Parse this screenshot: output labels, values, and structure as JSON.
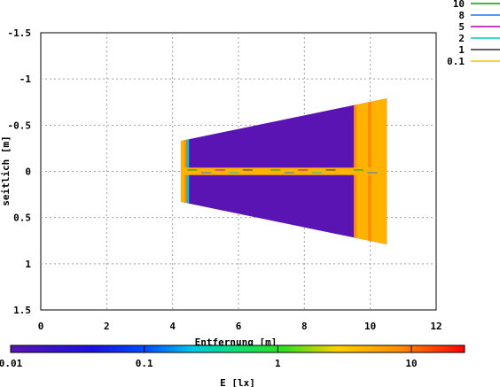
{
  "chart_data": {
    "type": "heatmap",
    "xlabel": "Entfernung [m]",
    "ylabel": "seitlich [m]",
    "xlim": [
      0,
      12
    ],
    "ylim": [
      -1.5,
      1.5
    ],
    "y_inverted": true,
    "grid": true,
    "x_ticks": [
      "0",
      "2",
      "4",
      "6",
      "8",
      "10",
      "12"
    ],
    "y_ticks": [
      "-1.5",
      "-1",
      "-0.5",
      "0",
      "0.5",
      "1",
      "1.5"
    ],
    "legend_position": "top-right",
    "contours": [
      {
        "name": "10",
        "color": "#00a000"
      },
      {
        "name": "8",
        "color": "#1e78ff"
      },
      {
        "name": "5",
        "color": "#b000b0"
      },
      {
        "name": "2",
        "color": "#00c8c8"
      },
      {
        "name": "1",
        "color": "#303030"
      },
      {
        "name": "0.1",
        "color": "#ffc000"
      }
    ],
    "illuminated_region": {
      "x_start": 4.25,
      "x_end": 10.5,
      "half_width_at_start": 0.33,
      "half_width_at_end": 0.79,
      "base_value_lx": 0.013,
      "bands": [
        {
          "x_from": 4.25,
          "x_to": 4.38,
          "color": "#ffb300"
        },
        {
          "x_from": 4.38,
          "x_to": 4.43,
          "color": "#ff8c00"
        },
        {
          "x_from": 4.43,
          "x_to": 4.5,
          "color": "#00c8c8"
        },
        {
          "x_from": 9.5,
          "x_to": 9.58,
          "color": "#ff8c00"
        },
        {
          "x_from": 9.58,
          "x_to": 9.95,
          "color": "#ffb300"
        },
        {
          "x_from": 9.95,
          "x_to": 10.02,
          "color": "#ff8c00"
        },
        {
          "x_from": 10.02,
          "x_to": 10.5,
          "color": "#ffb300"
        }
      ],
      "center_strip": {
        "y_from": -0.04,
        "y_to": 0.04,
        "color": "#ffb300"
      }
    },
    "colorbar": {
      "label": "E [lx]",
      "scale": "log",
      "range": [
        0.01,
        25
      ],
      "ticks": [
        "0.01",
        "0.1",
        "1",
        "10"
      ]
    }
  }
}
